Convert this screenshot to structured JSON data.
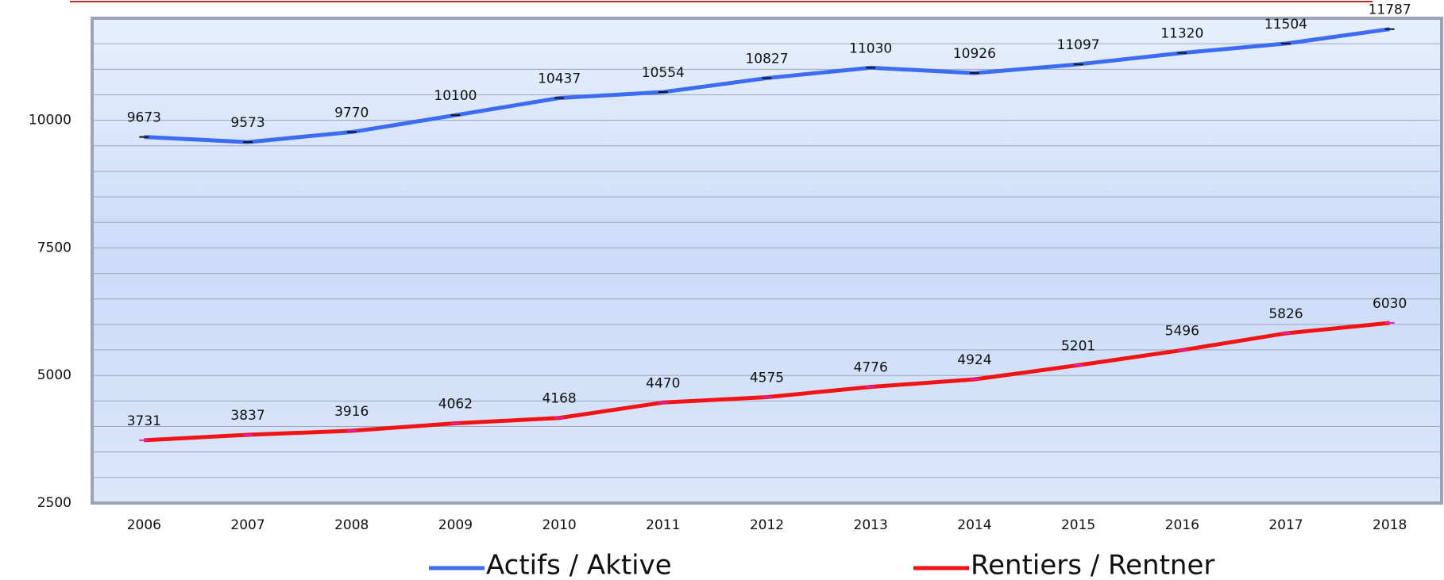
{
  "chart_data": {
    "type": "line",
    "categories": [
      "2006",
      "2007",
      "2008",
      "2009",
      "2010",
      "2011",
      "2012",
      "2013",
      "2014",
      "2015",
      "2016",
      "2017",
      "2018"
    ],
    "series": [
      {
        "name": "Actifs / Aktive",
        "color": "#3d6cf2",
        "values": [
          9673,
          9573,
          9770,
          10100,
          10437,
          10554,
          10827,
          11030,
          10926,
          11097,
          11320,
          11504,
          11787
        ]
      },
      {
        "name": "Rentiers / Rentner",
        "color": "#f21414",
        "values": [
          3731,
          3837,
          3916,
          4062,
          4168,
          4470,
          4575,
          4776,
          4924,
          5201,
          5496,
          5826,
          6030
        ]
      }
    ],
    "ylim": [
      2500,
      12000
    ],
    "yticks": [
      2500,
      5000,
      7500,
      10000
    ],
    "minor_yticks": [
      3000,
      3500,
      4000,
      4500,
      5500,
      6000,
      6500,
      7000,
      8000,
      8500,
      9000,
      9500,
      10500,
      11000,
      11500,
      12000
    ],
    "grid": true,
    "legend": "bottom"
  }
}
